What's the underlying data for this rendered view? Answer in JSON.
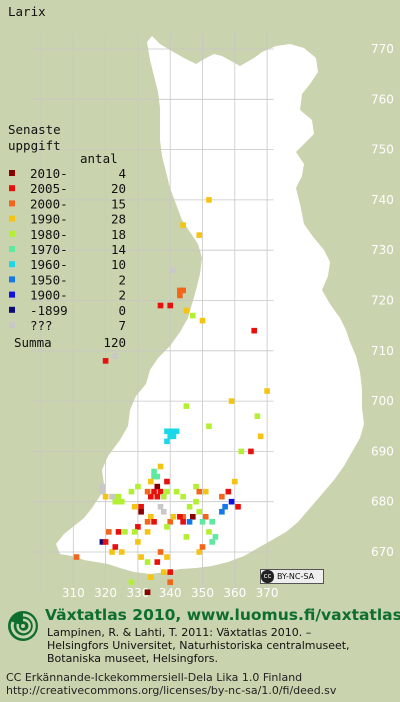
{
  "species": "Larix",
  "legend": {
    "title_line1": "Senaste",
    "title_line2": "uppgift",
    "count_header": "antal",
    "items": [
      {
        "label": "2010-",
        "count": "4",
        "color": "#8a0000"
      },
      {
        "label": "2005-",
        "count": "20",
        "color": "#e8100c"
      },
      {
        "label": "2000-",
        "count": "15",
        "color": "#f2661c"
      },
      {
        "label": "1990-",
        "count": "28",
        "color": "#f5c412"
      },
      {
        "label": "1980-",
        "count": "18",
        "color": "#b4f032"
      },
      {
        "label": "1970-",
        "count": "14",
        "color": "#5ee8a0"
      },
      {
        "label": "1960-",
        "count": "10",
        "color": "#1ad8e8"
      },
      {
        "label": "1950-",
        "count": "2",
        "color": "#1478e8"
      },
      {
        "label": "1900-",
        "count": "2",
        "color": "#1010e0"
      },
      {
        "label": "-1899",
        "count": "0",
        "color": "#0a0a78"
      },
      {
        "label": "???",
        "count": "7",
        "color": "#c8c8c8"
      }
    ],
    "sum_label": "Summa",
    "sum_count": "120"
  },
  "grid": {
    "y_labels": [
      "770",
      "760",
      "750",
      "740",
      "730",
      "720",
      "710",
      "700",
      "690",
      "680",
      "670"
    ],
    "x_labels": [
      "310",
      "320",
      "330",
      "340",
      "350",
      "360",
      "370"
    ]
  },
  "cc_badge": "BY-NC-SA",
  "footer": {
    "site": "Växtatlas 2010, www.luomus.fi/vaxtatlas",
    "credit_lines": [
      "Lampinen, R. & Lahti, T. 2011: Växtatlas 2010. –",
      "Helsingfors Universitet, Naturhistoriska centralmuseet,",
      "Botaniska museet, Helsingfors."
    ],
    "license_lines": [
      "CC Erkännande-Ickekommersiell-Dela Lika 1.0 Finland",
      "http://creativecommons.org/licenses/by-nc-sa/1.0/fi/deed.sv"
    ]
  },
  "occurrences": [
    {
      "e": 344,
      "n": 735,
      "p": 3
    },
    {
      "e": 349,
      "n": 733,
      "p": 3
    },
    {
      "e": 352,
      "n": 740,
      "p": 3
    },
    {
      "e": 341,
      "n": 726,
      "p": 10
    },
    {
      "e": 343,
      "n": 722,
      "p": 2
    },
    {
      "e": 344,
      "n": 722,
      "p": 2
    },
    {
      "e": 343,
      "n": 721,
      "p": 2
    },
    {
      "e": 337,
      "n": 719,
      "p": 1
    },
    {
      "e": 340,
      "n": 719,
      "p": 1
    },
    {
      "e": 345,
      "n": 718,
      "p": 3
    },
    {
      "e": 347,
      "n": 717,
      "p": 4
    },
    {
      "e": 350,
      "n": 716,
      "p": 3
    },
    {
      "e": 366,
      "n": 714,
      "p": 1
    },
    {
      "e": 323,
      "n": 709,
      "p": 10
    },
    {
      "e": 320,
      "n": 708,
      "p": 1
    },
    {
      "e": 370,
      "n": 702,
      "p": 3
    },
    {
      "e": 359,
      "n": 700,
      "p": 3
    },
    {
      "e": 352,
      "n": 695,
      "p": 4
    },
    {
      "e": 345,
      "n": 699,
      "p": 4
    },
    {
      "e": 367,
      "n": 697,
      "p": 4
    },
    {
      "e": 368,
      "n": 693,
      "p": 3
    },
    {
      "e": 362,
      "n": 690,
      "p": 4
    },
    {
      "e": 365,
      "n": 690,
      "p": 1
    },
    {
      "e": 339,
      "n": 694,
      "p": 6
    },
    {
      "e": 340,
      "n": 694,
      "p": 6
    },
    {
      "e": 341,
      "n": 694,
      "p": 6
    },
    {
      "e": 342,
      "n": 694,
      "p": 6
    },
    {
      "e": 340,
      "n": 693,
      "p": 6
    },
    {
      "e": 341,
      "n": 693,
      "p": 6
    },
    {
      "e": 339,
      "n": 692,
      "p": 6
    },
    {
      "e": 335,
      "n": 686,
      "p": 5
    },
    {
      "e": 335,
      "n": 685,
      "p": 5
    },
    {
      "e": 336,
      "n": 685,
      "p": 5
    },
    {
      "e": 337,
      "n": 687,
      "p": 3
    },
    {
      "e": 334,
      "n": 684,
      "p": 3
    },
    {
      "e": 336,
      "n": 683,
      "p": 0
    },
    {
      "e": 335,
      "n": 682,
      "p": 1
    },
    {
      "e": 337,
      "n": 682,
      "p": 1
    },
    {
      "e": 334,
      "n": 681,
      "p": 1
    },
    {
      "e": 336,
      "n": 681,
      "p": 1
    },
    {
      "e": 338,
      "n": 681,
      "p": 4
    },
    {
      "e": 339,
      "n": 684,
      "p": 1
    },
    {
      "e": 333,
      "n": 682,
      "p": 2
    },
    {
      "e": 330,
      "n": 683,
      "p": 4
    },
    {
      "e": 328,
      "n": 682,
      "p": 4
    },
    {
      "e": 339,
      "n": 682,
      "p": 4
    },
    {
      "e": 342,
      "n": 682,
      "p": 4
    },
    {
      "e": 344,
      "n": 681,
      "p": 4
    },
    {
      "e": 348,
      "n": 683,
      "p": 4
    },
    {
      "e": 349,
      "n": 682,
      "p": 2
    },
    {
      "e": 351,
      "n": 682,
      "p": 3
    },
    {
      "e": 356,
      "n": 681,
      "p": 2
    },
    {
      "e": 358,
      "n": 682,
      "p": 1
    },
    {
      "e": 360,
      "n": 684,
      "p": 3
    },
    {
      "e": 359,
      "n": 680,
      "p": 8
    },
    {
      "e": 361,
      "n": 679,
      "p": 1
    },
    {
      "e": 357,
      "n": 679,
      "p": 7
    },
    {
      "e": 356,
      "n": 678,
      "p": 7
    },
    {
      "e": 353,
      "n": 676,
      "p": 5
    },
    {
      "e": 351,
      "n": 677,
      "p": 2
    },
    {
      "e": 349,
      "n": 678,
      "p": 4
    },
    {
      "e": 347,
      "n": 677,
      "p": 0
    },
    {
      "e": 346,
      "n": 676,
      "p": 7
    },
    {
      "e": 344,
      "n": 677,
      "p": 2
    },
    {
      "e": 344,
      "n": 676,
      "p": 1
    },
    {
      "e": 343,
      "n": 677,
      "p": 1
    },
    {
      "e": 346,
      "n": 679,
      "p": 4
    },
    {
      "e": 348,
      "n": 680,
      "p": 4
    },
    {
      "e": 350,
      "n": 676,
      "p": 5
    },
    {
      "e": 352,
      "n": 674,
      "p": 4
    },
    {
      "e": 354,
      "n": 673,
      "p": 5
    },
    {
      "e": 353,
      "n": 672,
      "p": 5
    },
    {
      "e": 340,
      "n": 676,
      "p": 2
    },
    {
      "e": 339,
      "n": 675,
      "p": 4
    },
    {
      "e": 338,
      "n": 678,
      "p": 10
    },
    {
      "e": 337,
      "n": 679,
      "p": 10
    },
    {
      "e": 331,
      "n": 679,
      "p": 1
    },
    {
      "e": 331,
      "n": 678,
      "p": 0
    },
    {
      "e": 329,
      "n": 679,
      "p": 3
    },
    {
      "e": 323,
      "n": 680,
      "p": 4
    },
    {
      "e": 323,
      "n": 681,
      "p": 4
    },
    {
      "e": 324,
      "n": 680,
      "p": 4
    },
    {
      "e": 324,
      "n": 681,
      "p": 4
    },
    {
      "e": 325,
      "n": 680,
      "p": 4
    },
    {
      "e": 322,
      "n": 681,
      "p": 10
    },
    {
      "e": 319,
      "n": 682,
      "p": 10
    },
    {
      "e": 319,
      "n": 683,
      "p": 10
    },
    {
      "e": 320,
      "n": 681,
      "p": 3
    },
    {
      "e": 334,
      "n": 677,
      "p": 3
    },
    {
      "e": 335,
      "n": 676,
      "p": 1
    },
    {
      "e": 333,
      "n": 676,
      "p": 2
    },
    {
      "e": 333,
      "n": 674,
      "p": 3
    },
    {
      "e": 330,
      "n": 675,
      "p": 1
    },
    {
      "e": 329,
      "n": 674,
      "p": 4
    },
    {
      "e": 330,
      "n": 672,
      "p": 3
    },
    {
      "e": 331,
      "n": 669,
      "p": 3
    },
    {
      "e": 333,
      "n": 668,
      "p": 4
    },
    {
      "e": 337,
      "n": 670,
      "p": 2
    },
    {
      "e": 339,
      "n": 669,
      "p": 3
    },
    {
      "e": 340,
      "n": 666,
      "p": 1
    },
    {
      "e": 338,
      "n": 666,
      "p": 3
    },
    {
      "e": 340,
      "n": 664,
      "p": 2
    },
    {
      "e": 334,
      "n": 665,
      "p": 3
    },
    {
      "e": 333,
      "n": 662,
      "p": 0
    },
    {
      "e": 326,
      "n": 674,
      "p": 4
    },
    {
      "e": 324,
      "n": 674,
      "p": 1
    },
    {
      "e": 321,
      "n": 674,
      "p": 2
    },
    {
      "e": 322,
      "n": 670,
      "p": 3
    },
    {
      "e": 323,
      "n": 671,
      "p": 1
    },
    {
      "e": 325,
      "n": 670,
      "p": 3
    },
    {
      "e": 319,
      "n": 672,
      "p": 9
    },
    {
      "e": 320,
      "n": 672,
      "p": 1
    },
    {
      "e": 311,
      "n": 669,
      "p": 2
    },
    {
      "e": 328,
      "n": 664,
      "p": 4
    },
    {
      "e": 349,
      "n": 670,
      "p": 3
    },
    {
      "e": 350,
      "n": 671,
      "p": 2
    },
    {
      "e": 345,
      "n": 673,
      "p": 4
    },
    {
      "e": 336,
      "n": 668,
      "p": 1
    },
    {
      "e": 341,
      "n": 677,
      "p": 3
    }
  ]
}
